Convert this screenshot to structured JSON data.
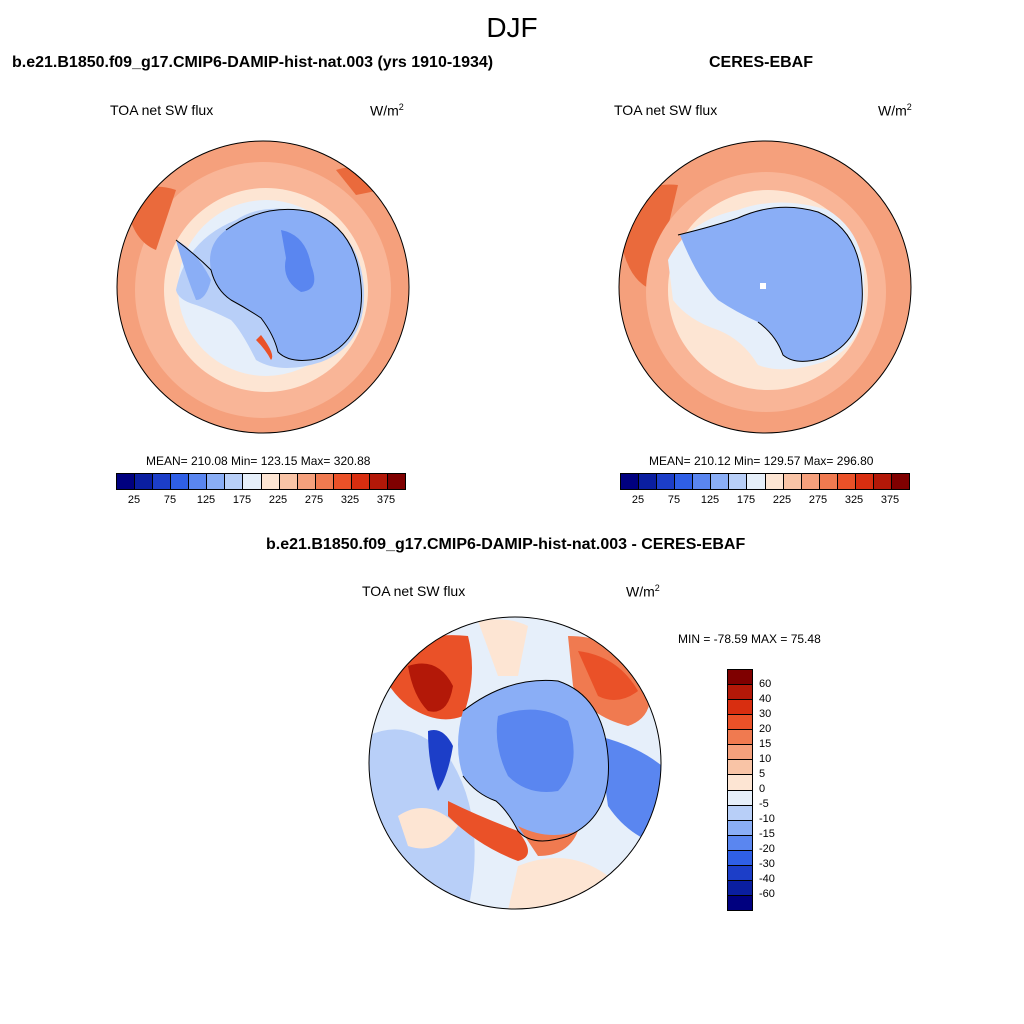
{
  "figure": {
    "title": "DJF"
  },
  "panels": [
    {
      "title": "b.e21.B1850.f09_g17.CMIP6-DAMIP-hist-nat.003 (yrs 1910-1934)",
      "variable": "TOA net SW flux",
      "units": "W/m",
      "units_sup": "2",
      "stats": "MEAN= 210.08  Min= 123.15  Max= 320.88"
    },
    {
      "title": "CERES-EBAF",
      "variable": "TOA net SW flux",
      "units": "W/m",
      "units_sup": "2",
      "stats": "MEAN= 210.12  Min= 129.57  Max= 296.80"
    },
    {
      "title": "b.e21.B1850.f09_g17.CMIP6-DAMIP-hist-nat.003 - CERES-EBAF",
      "variable": "TOA net SW flux",
      "units": "W/m",
      "units_sup": "2",
      "stats": "MIN = -78.59 MAX =  75.48"
    }
  ],
  "colorbar_abs": {
    "labels": [
      "25",
      "75",
      "125",
      "175",
      "225",
      "275",
      "325",
      "375"
    ],
    "colors": [
      "#00007f",
      "#0a1ea0",
      "#1c3ec8",
      "#2f5fe6",
      "#5a86f0",
      "#8aaef6",
      "#b8cff8",
      "#e6effa",
      "#fde5d3",
      "#f9c4a6",
      "#f5a07c",
      "#f07a50",
      "#ea5128",
      "#d82e10",
      "#b31808",
      "#7f0000"
    ]
  },
  "colorbar_diff": {
    "labels": [
      "60",
      "40",
      "30",
      "20",
      "15",
      "10",
      "5",
      "0",
      "-5",
      "-10",
      "-15",
      "-20",
      "-30",
      "-40",
      "-60"
    ],
    "colors": [
      "#7f0000",
      "#b31808",
      "#d82e10",
      "#ea5128",
      "#f07a50",
      "#f5a07c",
      "#f9c4a6",
      "#fde5d3",
      "#e6effa",
      "#b8cff8",
      "#8aaef6",
      "#5a86f0",
      "#2f5fe6",
      "#1c3ec8",
      "#0a1ea0",
      "#00007f"
    ]
  },
  "chart_data": [
    {
      "type": "heatmap",
      "title": "b.e21.B1850.f09_g17.CMIP6-DAMIP-hist-nat.003 (yrs 1910-1934)",
      "subtitle": "TOA net SW flux",
      "units": "W/m2",
      "projection": "south polar stereographic",
      "mean": 210.08,
      "min": 123.15,
      "max": 320.88,
      "colorbar_levels": [
        25,
        75,
        125,
        175,
        225,
        275,
        325,
        375
      ]
    },
    {
      "type": "heatmap",
      "title": "CERES-EBAF",
      "subtitle": "TOA net SW flux",
      "units": "W/m2",
      "projection": "south polar stereographic",
      "mean": 210.12,
      "min": 129.57,
      "max": 296.8,
      "colorbar_levels": [
        25,
        75,
        125,
        175,
        225,
        275,
        325,
        375
      ]
    },
    {
      "type": "heatmap",
      "title": "b.e21.B1850.f09_g17.CMIP6-DAMIP-hist-nat.003 - CERES-EBAF",
      "subtitle": "TOA net SW flux",
      "units": "W/m2",
      "projection": "south polar stereographic",
      "min": -78.59,
      "max": 75.48,
      "colorbar_levels": [
        60,
        40,
        30,
        20,
        15,
        10,
        5,
        0,
        -5,
        -10,
        -15,
        -20,
        -30,
        -40,
        -60
      ]
    }
  ]
}
